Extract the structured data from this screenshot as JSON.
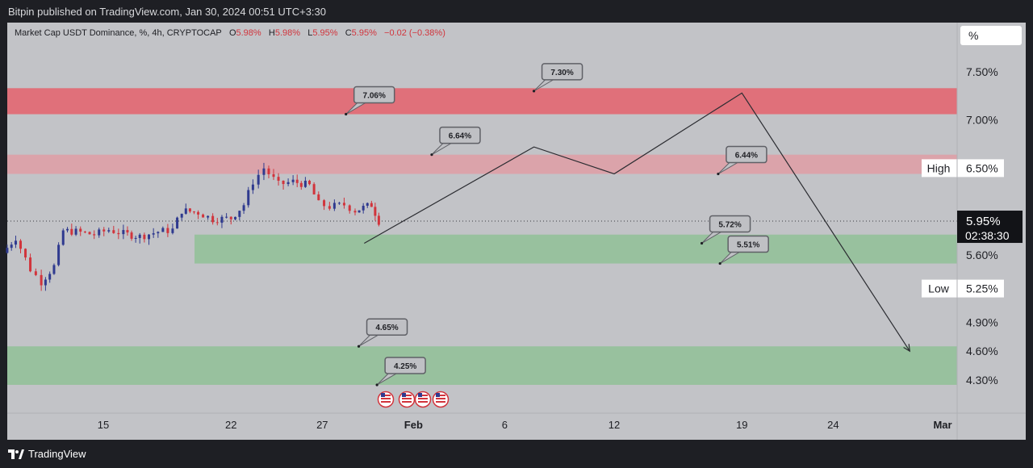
{
  "header": {
    "published": "Bitpin published on TradingView.com, Jan 30, 2024 00:51 UTC+3:30"
  },
  "legend": {
    "symbol": "Market Cap USDT Dominance, %, 4h, CRYPTOCAP",
    "open_label": "O",
    "open": "5.98%",
    "high_label": "H",
    "high": "5.98%",
    "low_label": "L",
    "low": "5.95%",
    "close_label": "C",
    "close": "5.95%",
    "change": "−0.02 (−0.38%)"
  },
  "price_scale": {
    "unit": "%",
    "current_price": "5.95%",
    "countdown": "02:38:30"
  },
  "footer": {
    "brand": "TradingView"
  },
  "chart_data": {
    "type": "line",
    "title": "",
    "xlabel": "",
    "ylabel": "",
    "ylim": [
      4.1,
      7.8
    ],
    "x_ticks": [
      {
        "label": "15",
        "day": 15
      },
      {
        "label": "22",
        "day": 22
      },
      {
        "label": "27",
        "day": 27
      },
      {
        "label": "Feb",
        "day": 32
      },
      {
        "label": "6",
        "day": 37
      },
      {
        "label": "12",
        "day": 43
      },
      {
        "label": "19",
        "day": 50
      },
      {
        "label": "24",
        "day": 55
      },
      {
        "label": "Mar",
        "day": 61
      }
    ],
    "y_ticks": [
      "7.50%",
      "7.00%",
      "6.50%",
      "5.60%",
      "5.25%",
      "4.90%",
      "4.60%",
      "4.30%"
    ],
    "y_tick_values": [
      7.5,
      7.0,
      6.5,
      5.6,
      5.25,
      4.9,
      4.6,
      4.3
    ],
    "range_labels": [
      {
        "label": "High",
        "value": 6.5
      },
      {
        "label": "Low",
        "value": 5.25
      }
    ],
    "current_price": 5.95,
    "zones": [
      {
        "name": "resistance-strong",
        "from": 7.06,
        "to": 7.33,
        "color": "#e0707a",
        "start_day": 9.5
      },
      {
        "name": "resistance-weak",
        "from": 6.44,
        "to": 6.64,
        "color": "#dba3aa",
        "start_day": 9.5
      },
      {
        "name": "support-near",
        "from": 5.51,
        "to": 5.81,
        "color": "#98c19e",
        "start_day": 20
      },
      {
        "name": "support-deep",
        "from": 4.25,
        "to": 4.65,
        "color": "#98c19e",
        "start_day": 9.5
      }
    ],
    "callouts": [
      {
        "text": "7.06%",
        "day": 28.3,
        "value": 7.06
      },
      {
        "text": "7.30%",
        "day": 38.6,
        "value": 7.3
      },
      {
        "text": "6.64%",
        "day": 33.0,
        "value": 6.64
      },
      {
        "text": "6.44%",
        "day": 48.7,
        "value": 6.44
      },
      {
        "text": "5.72%",
        "day": 47.8,
        "value": 5.72
      },
      {
        "text": "5.51%",
        "day": 48.8,
        "value": 5.51
      },
      {
        "text": "4.65%",
        "day": 29.0,
        "value": 4.65
      },
      {
        "text": "4.25%",
        "day": 30.0,
        "value": 4.25
      }
    ],
    "projection": [
      {
        "day": 29.3,
        "value": 5.72
      },
      {
        "day": 38.6,
        "value": 6.72
      },
      {
        "day": 43.0,
        "value": 6.44
      },
      {
        "day": 50.0,
        "value": 7.28
      },
      {
        "day": 59.2,
        "value": 4.6
      }
    ],
    "candles_description": "4h candlesticks",
    "candle_anchors": [
      {
        "day": 9.5,
        "value": 5.62
      },
      {
        "day": 10.2,
        "value": 5.78
      },
      {
        "day": 11.0,
        "value": 5.45
      },
      {
        "day": 11.6,
        "value": 5.32
      },
      {
        "day": 12.3,
        "value": 5.48
      },
      {
        "day": 12.8,
        "value": 5.85
      },
      {
        "day": 13.5,
        "value": 5.84
      },
      {
        "day": 14.5,
        "value": 5.81
      },
      {
        "day": 15.3,
        "value": 5.86
      },
      {
        "day": 16.1,
        "value": 5.82
      },
      {
        "day": 17.0,
        "value": 5.79
      },
      {
        "day": 18.0,
        "value": 5.84
      },
      {
        "day": 18.8,
        "value": 5.86
      },
      {
        "day": 19.3,
        "value": 6.06
      },
      {
        "day": 20.2,
        "value": 6.04
      },
      {
        "day": 21.0,
        "value": 5.97
      },
      {
        "day": 22.0,
        "value": 5.98
      },
      {
        "day": 22.7,
        "value": 6.12
      },
      {
        "day": 23.2,
        "value": 6.36
      },
      {
        "day": 23.8,
        "value": 6.5
      },
      {
        "day": 24.6,
        "value": 6.33
      },
      {
        "day": 25.4,
        "value": 6.36
      },
      {
        "day": 26.3,
        "value": 6.32
      },
      {
        "day": 26.8,
        "value": 6.13
      },
      {
        "day": 27.4,
        "value": 6.1
      },
      {
        "day": 28.2,
        "value": 6.12
      },
      {
        "day": 28.8,
        "value": 6.06
      },
      {
        "day": 29.7,
        "value": 6.12
      },
      {
        "day": 30.1,
        "value": 5.95
      }
    ],
    "events_count": 4
  }
}
